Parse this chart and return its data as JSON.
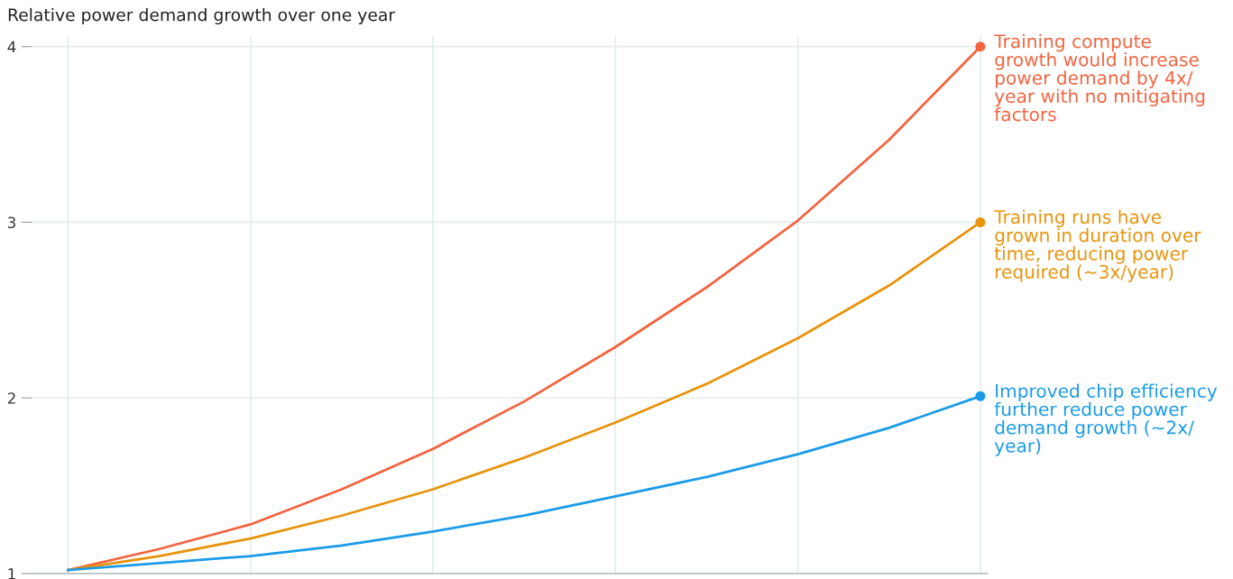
{
  "chart_data": {
    "type": "line",
    "title": "Relative power demand growth over one year",
    "categories": [
      null,
      null,
      null,
      null,
      null,
      null,
      null,
      null,
      null,
      null,
      null
    ],
    "series": [
      {
        "name": "Training compute\ngrowth would increase\npower demand by 4x/\nyear with no mitigating\nfactors",
        "color": "#f26440",
        "values": [
          1.02,
          1.14,
          1.28,
          1.48,
          1.71,
          1.98,
          2.29,
          2.63,
          3.01,
          3.47,
          4.0
        ]
      },
      {
        "name": "Training runs have\ngrown in duration over\ntime, reducing power\nrequired (~3x/year)",
        "color": "#e8930c",
        "values": [
          1.02,
          1.1,
          1.2,
          1.33,
          1.48,
          1.66,
          1.86,
          2.08,
          2.34,
          2.64,
          3.0
        ]
      },
      {
        "name": "Improved chip efficiency\nfurther reduce power\ndemand growth (~2x/\nyear)",
        "color": "#1a9be8",
        "values": [
          1.02,
          1.06,
          1.1,
          1.16,
          1.24,
          1.33,
          1.44,
          1.55,
          1.68,
          1.83,
          2.01
        ]
      }
    ],
    "ylim": [
      1,
      4.06
    ],
    "yticks": [
      1,
      2,
      3,
      4
    ],
    "grid": true,
    "line_style": "solid",
    "marker": "none"
  }
}
